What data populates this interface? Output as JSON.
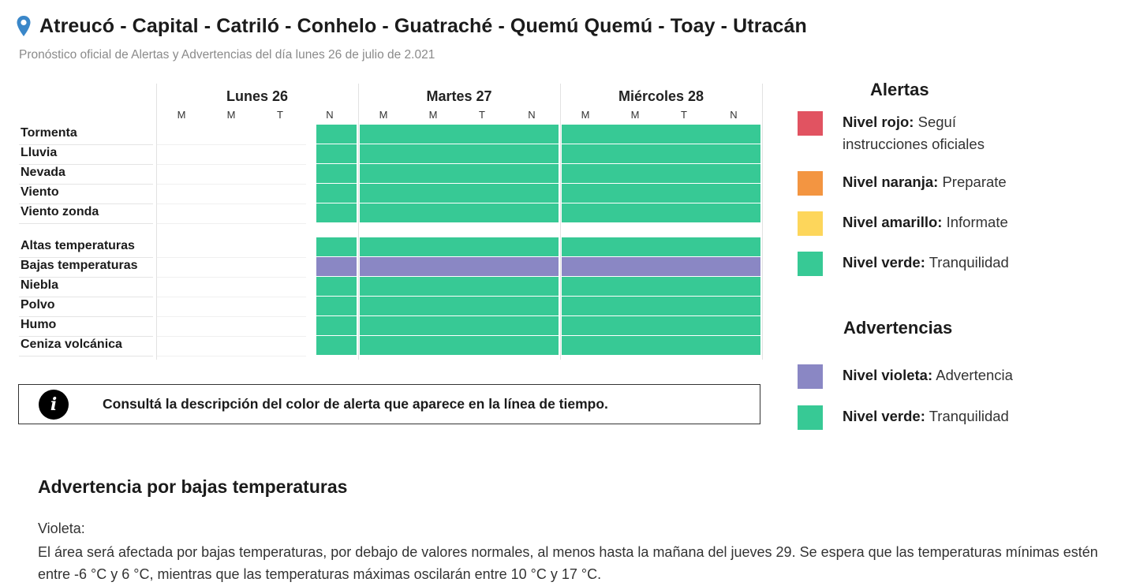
{
  "header": {
    "title": "Atreucó - Capital - Catriló - Conhelo - Guatraché - Quemú Quemú - Toay - Utracán",
    "subtitle": "Pronóstico oficial de Alertas y Advertencias del día lunes 26 de julio de 2.021",
    "pin_icon": "location-pin-icon"
  },
  "timeline": {
    "days": [
      "Lunes 26",
      "Martes 27",
      "Miércoles 28"
    ],
    "slots": [
      "M",
      "M",
      "T",
      "N"
    ],
    "rows": [
      {
        "label": "Tormenta",
        "levels": [
          "",
          "",
          "",
          "verde",
          "verde",
          "verde",
          "verde",
          "verde",
          "verde",
          "verde",
          "verde",
          "verde"
        ]
      },
      {
        "label": "Lluvia",
        "levels": [
          "",
          "",
          "",
          "verde",
          "verde",
          "verde",
          "verde",
          "verde",
          "verde",
          "verde",
          "verde",
          "verde"
        ]
      },
      {
        "label": "Nevada",
        "levels": [
          "",
          "",
          "",
          "verde",
          "verde",
          "verde",
          "verde",
          "verde",
          "verde",
          "verde",
          "verde",
          "verde"
        ]
      },
      {
        "label": "Viento",
        "levels": [
          "",
          "",
          "",
          "verde",
          "verde",
          "verde",
          "verde",
          "verde",
          "verde",
          "verde",
          "verde",
          "verde"
        ]
      },
      {
        "label": "Viento zonda",
        "levels": [
          "",
          "",
          "",
          "verde",
          "verde",
          "verde",
          "verde",
          "verde",
          "verde",
          "verde",
          "verde",
          "verde"
        ]
      },
      {
        "label": "Altas temperaturas",
        "levels": [
          "",
          "",
          "",
          "verde",
          "verde",
          "verde",
          "verde",
          "verde",
          "verde",
          "verde",
          "verde",
          "verde"
        ]
      },
      {
        "label": "Bajas temperaturas",
        "levels": [
          "",
          "",
          "",
          "violeta",
          "violeta",
          "violeta",
          "violeta",
          "violeta",
          "violeta",
          "violeta",
          "violeta",
          "violeta"
        ]
      },
      {
        "label": "Niebla",
        "levels": [
          "",
          "",
          "",
          "verde",
          "verde",
          "verde",
          "verde",
          "verde",
          "verde",
          "verde",
          "verde",
          "verde"
        ]
      },
      {
        "label": "Polvo",
        "levels": [
          "",
          "",
          "",
          "verde",
          "verde",
          "verde",
          "verde",
          "verde",
          "verde",
          "verde",
          "verde",
          "verde"
        ]
      },
      {
        "label": "Humo",
        "levels": [
          "",
          "",
          "",
          "verde",
          "verde",
          "verde",
          "verde",
          "verde",
          "verde",
          "verde",
          "verde",
          "verde"
        ]
      },
      {
        "label": "Ceniza volcánica",
        "levels": [
          "",
          "",
          "",
          "verde",
          "verde",
          "verde",
          "verde",
          "verde",
          "verde",
          "verde",
          "verde",
          "verde"
        ]
      }
    ],
    "colors": {
      "verde": "#37c995",
      "violeta": "#8a87c4"
    }
  },
  "info": {
    "icon": "info-icon",
    "icon_glyph": "i",
    "text": "Consultá la descripción del color de alerta que aparece en la línea de tiempo."
  },
  "legend": {
    "alerts_title": "Alertas",
    "alerts": [
      {
        "level": "Nivel rojo:",
        "desc": " Seguí instrucciones oficiales",
        "color": "#e15361"
      },
      {
        "level": "Nivel naranja:",
        "desc": " Preparate",
        "color": "#f39541"
      },
      {
        "level": "Nivel amarillo:",
        "desc": " Informate",
        "color": "#fdd65b"
      },
      {
        "level": "Nivel verde:",
        "desc": " Tranquilidad",
        "color": "#37c995"
      }
    ],
    "warnings_title": "Advertencias",
    "warnings": [
      {
        "level": "Nivel violeta:",
        "desc": " Advertencia",
        "color": "#8a87c4"
      },
      {
        "level": "Nivel verde:",
        "desc": " Tranquilidad",
        "color": "#37c995"
      }
    ]
  },
  "description": {
    "title": "Advertencia por bajas temperaturas",
    "label": "Violeta:",
    "text": "El área será afectada por bajas temperaturas, por debajo de valores normales, al menos hasta la mañana del jueves 29. Se espera que las temperaturas mínimas estén entre -6 °C y 6 °C, mientras que las temperaturas máximas oscilarán entre 10 °C y 17 °C."
  }
}
